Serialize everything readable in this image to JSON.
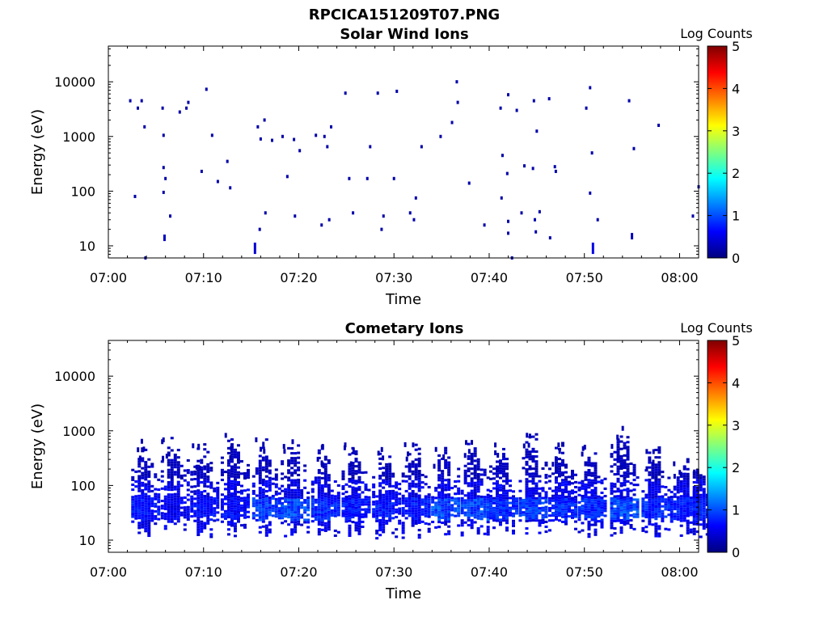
{
  "figure_title": "RPCICA151209T07.PNG",
  "colors": {
    "colormap": [
      "#00007f",
      "#0000ff",
      "#007fff",
      "#00ffff",
      "#7fff7f",
      "#ffff00",
      "#ff7f00",
      "#ff0000",
      "#7f0000"
    ],
    "dots": "#0000a0"
  },
  "chart_data": [
    {
      "type": "heatmap",
      "title": "Solar Wind Ions",
      "xlabel": "Time",
      "ylabel": "Energy (eV)",
      "x_ticks": [
        "07:00",
        "07:10",
        "07:20",
        "07:30",
        "07:40",
        "07:50",
        "08:00"
      ],
      "x_tick_minutes": [
        0,
        10,
        20,
        30,
        40,
        50,
        60
      ],
      "xlim_minutes": [
        0,
        62
      ],
      "y_scale": "log",
      "ylim": [
        6,
        45000
      ],
      "y_ticks": [
        "10",
        "100",
        "1000",
        "10000"
      ],
      "y_tick_values": [
        10,
        100,
        1000,
        10000
      ],
      "colorbar": {
        "label": "Log Counts",
        "min": 0,
        "max": 5,
        "ticks": [
          "0",
          "1",
          "2",
          "3",
          "4",
          "5"
        ]
      },
      "points": [
        [
          2.3,
          4500,
          0.2
        ],
        [
          2.8,
          80,
          0.2
        ],
        [
          3.1,
          3300,
          0.2
        ],
        [
          3.5,
          4500,
          0.2
        ],
        [
          3.8,
          1500,
          0.2
        ],
        [
          3.9,
          6,
          0.2
        ],
        [
          5.7,
          3300,
          0.2
        ],
        [
          5.8,
          1050,
          0.2
        ],
        [
          5.8,
          270,
          0.2
        ],
        [
          5.8,
          95,
          0.2
        ],
        [
          5.9,
          14,
          0.3
        ],
        [
          6.0,
          170,
          0.2
        ],
        [
          6.5,
          35,
          0.2
        ],
        [
          7.5,
          2800,
          0.2
        ],
        [
          8.2,
          3300,
          0.2
        ],
        [
          8.4,
          4200,
          0.2
        ],
        [
          9.8,
          230,
          0.2
        ],
        [
          10.3,
          7300,
          0.2
        ],
        [
          10.9,
          1050,
          0.2
        ],
        [
          11.5,
          150,
          0.2
        ],
        [
          12.5,
          350,
          0.2
        ],
        [
          12.8,
          115,
          0.2
        ],
        [
          15.4,
          9,
          0.4
        ],
        [
          15.7,
          1500,
          0.2
        ],
        [
          15.9,
          20,
          0.2
        ],
        [
          16.0,
          900,
          0.2
        ],
        [
          16.4,
          2000,
          0.2
        ],
        [
          16.5,
          40,
          0.2
        ],
        [
          17.2,
          850,
          0.2
        ],
        [
          18.3,
          1000,
          0.2
        ],
        [
          18.8,
          185,
          0.2
        ],
        [
          19.5,
          880,
          0.2
        ],
        [
          19.6,
          35,
          0.2
        ],
        [
          20.1,
          550,
          0.2
        ],
        [
          21.8,
          1050,
          0.2
        ],
        [
          22.4,
          24,
          0.2
        ],
        [
          22.7,
          1000,
          0.2
        ],
        [
          23.0,
          650,
          0.2
        ],
        [
          23.2,
          30,
          0.2
        ],
        [
          23.4,
          1500,
          0.2
        ],
        [
          24.9,
          6200,
          0.2
        ],
        [
          25.3,
          170,
          0.2
        ],
        [
          25.7,
          40,
          0.2
        ],
        [
          27.2,
          170,
          0.2
        ],
        [
          27.5,
          650,
          0.2
        ],
        [
          28.3,
          6200,
          0.2
        ],
        [
          28.7,
          20,
          0.2
        ],
        [
          28.9,
          35,
          0.2
        ],
        [
          30.0,
          170,
          0.2
        ],
        [
          30.3,
          6700,
          0.2
        ],
        [
          31.7,
          40,
          0.2
        ],
        [
          32.1,
          30,
          0.2
        ],
        [
          32.3,
          75,
          0.2
        ],
        [
          32.9,
          650,
          0.2
        ],
        [
          34.9,
          1000,
          0.2
        ],
        [
          36.1,
          1800,
          0.2
        ],
        [
          36.6,
          10000,
          0.2
        ],
        [
          36.7,
          4200,
          0.2
        ],
        [
          37.9,
          140,
          0.2
        ],
        [
          39.5,
          24,
          0.2
        ],
        [
          41.2,
          3300,
          0.2
        ],
        [
          41.3,
          75,
          0.2
        ],
        [
          41.4,
          450,
          0.2
        ],
        [
          41.9,
          210,
          0.2
        ],
        [
          42.0,
          5800,
          0.2
        ],
        [
          42.0,
          28,
          0.2
        ],
        [
          42.0,
          17,
          0.2
        ],
        [
          42.4,
          6,
          0.2
        ],
        [
          42.9,
          3000,
          0.2
        ],
        [
          43.4,
          40,
          0.2
        ],
        [
          43.7,
          290,
          0.2
        ],
        [
          44.6,
          260,
          0.2
        ],
        [
          44.7,
          4500,
          0.2
        ],
        [
          44.8,
          30,
          0.2
        ],
        [
          44.9,
          18,
          0.2
        ],
        [
          45.0,
          1250,
          0.2
        ],
        [
          45.3,
          42,
          0.2
        ],
        [
          46.3,
          4900,
          0.2
        ],
        [
          46.4,
          14,
          0.2
        ],
        [
          46.9,
          280,
          0.2
        ],
        [
          47.0,
          230,
          0.2
        ],
        [
          50.2,
          3300,
          0.2
        ],
        [
          50.6,
          7800,
          0.2
        ],
        [
          50.6,
          92,
          0.2
        ],
        [
          50.8,
          500,
          0.2
        ],
        [
          50.9,
          9,
          0.5
        ],
        [
          51.4,
          30,
          0.2
        ],
        [
          54.7,
          4500,
          0.2
        ],
        [
          55.0,
          15,
          0.3
        ],
        [
          55.2,
          600,
          0.2
        ],
        [
          57.8,
          1600,
          0.2
        ],
        [
          61.4,
          35,
          0.2
        ],
        [
          62.0,
          120,
          0.2
        ]
      ]
    },
    {
      "type": "heatmap",
      "title": "Cometary Ions",
      "xlabel": "Time",
      "ylabel": "Energy (eV)",
      "x_ticks": [
        "07:00",
        "07:10",
        "07:20",
        "07:30",
        "07:40",
        "07:50",
        "08:00"
      ],
      "x_tick_minutes": [
        0,
        10,
        20,
        30,
        40,
        50,
        60
      ],
      "xlim_minutes": [
        0,
        62
      ],
      "y_scale": "log",
      "ylim": [
        6,
        45000
      ],
      "y_ticks": [
        "10",
        "100",
        "1000",
        "10000"
      ],
      "y_tick_values": [
        10,
        100,
        1000,
        10000
      ],
      "colorbar": {
        "label": "Log Counts",
        "min": 0,
        "max": 5,
        "ticks": [
          "0",
          "1",
          "2",
          "3",
          "4",
          "5"
        ]
      },
      "bursts": [
        {
          "t": 2.9,
          "top": 700,
          "peak": 0.9,
          "sparse": 300
        },
        {
          "t": 6.0,
          "top": 800,
          "peak": 0.7,
          "sparse": 350
        },
        {
          "t": 9.1,
          "top": 650,
          "peak": 0.8,
          "sparse": 250
        },
        {
          "t": 12.3,
          "top": 800,
          "peak": 0.8,
          "sparse": 400
        },
        {
          "t": 15.6,
          "top": 700,
          "peak": 1.1,
          "sparse": 300
        },
        {
          "t": 18.6,
          "top": 700,
          "peak": 1.2,
          "sparse": 300
        },
        {
          "t": 21.8,
          "top": 550,
          "peak": 1.0,
          "sparse": 250
        },
        {
          "t": 25.0,
          "top": 550,
          "peak": 0.9,
          "sparse": 250
        },
        {
          "t": 28.2,
          "top": 450,
          "peak": 0.9,
          "sparse": 250
        },
        {
          "t": 31.3,
          "top": 600,
          "peak": 0.9,
          "sparse": 250
        },
        {
          "t": 34.4,
          "top": 500,
          "peak": 1.2,
          "sparse": 250
        },
        {
          "t": 37.5,
          "top": 700,
          "peak": 1.2,
          "sparse": 350
        },
        {
          "t": 40.5,
          "top": 600,
          "peak": 1.0,
          "sparse": 250
        },
        {
          "t": 43.6,
          "top": 900,
          "peak": 1.1,
          "sparse": 400
        },
        {
          "t": 46.7,
          "top": 600,
          "peak": 1.0,
          "sparse": 300
        },
        {
          "t": 49.8,
          "top": 500,
          "peak": 1.0,
          "sparse": 250
        },
        {
          "t": 53.2,
          "top": 1100,
          "peak": 1.2,
          "sparse": 600
        },
        {
          "t": 56.5,
          "top": 500,
          "peak": 1.0,
          "sparse": 250
        },
        {
          "t": 59.5,
          "top": 300,
          "peak": 0.9,
          "sparse": 150
        },
        {
          "t": 61.2,
          "top": 250,
          "peak": 0.9,
          "sparse": 150
        }
      ]
    }
  ]
}
